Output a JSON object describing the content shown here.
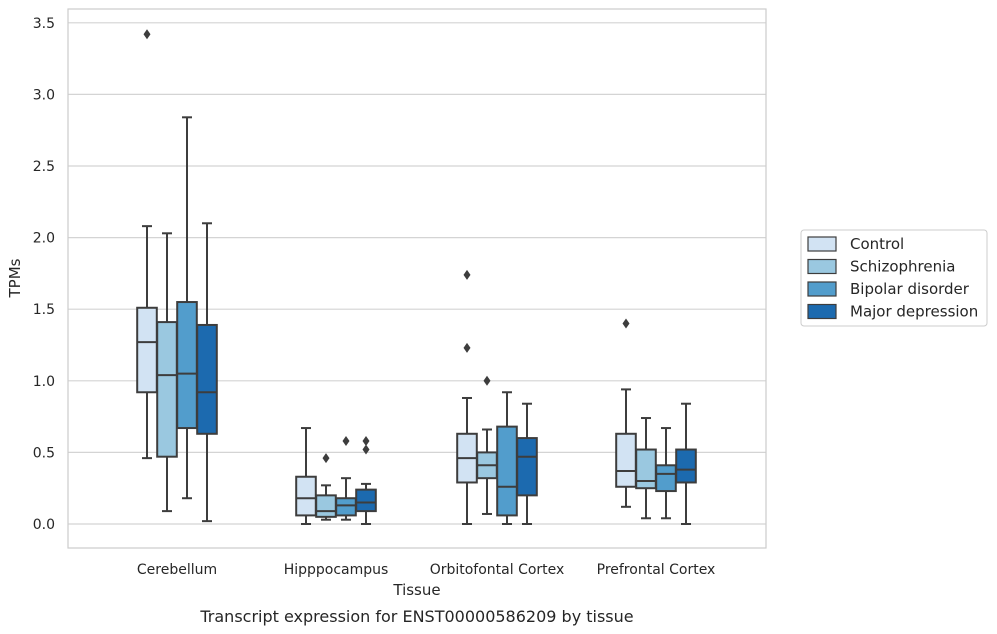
{
  "chart_data": {
    "type": "box",
    "xlabel": "Tissue",
    "ylabel": "TPMs",
    "caption": "Transcript expression for ENST00000586209 by tissue",
    "ylim": [
      -0.17,
      3.6
    ],
    "yticks": [
      "0.0",
      "0.5",
      "1.0",
      "1.5",
      "2.0",
      "2.5",
      "3.0",
      "3.5"
    ],
    "grid": "horizontal",
    "legend_position": "right",
    "categories": [
      "Cerebellum",
      "Hipppocampus",
      "Orbitofontal Cortex",
      "Prefrontal Cortex"
    ],
    "series": [
      {
        "name": "Control",
        "color": "#d2e3f3",
        "boxes": [
          {
            "whisker_low": 0.46,
            "q1": 0.92,
            "median": 1.27,
            "q3": 1.51,
            "whisker_high": 2.08,
            "outliers": [
              3.42
            ]
          },
          {
            "whisker_low": 0.0,
            "q1": 0.06,
            "median": 0.18,
            "q3": 0.33,
            "whisker_high": 0.67,
            "outliers": []
          },
          {
            "whisker_low": 0.0,
            "q1": 0.29,
            "median": 0.46,
            "q3": 0.63,
            "whisker_high": 0.88,
            "outliers": [
              1.23,
              1.74
            ]
          },
          {
            "whisker_low": 0.12,
            "q1": 0.26,
            "median": 0.37,
            "q3": 0.63,
            "whisker_high": 0.94,
            "outliers": [
              1.4
            ]
          }
        ]
      },
      {
        "name": "Schizophrenia",
        "color": "#9ac8e0",
        "boxes": [
          {
            "whisker_low": 0.09,
            "q1": 0.47,
            "median": 1.04,
            "q3": 1.41,
            "whisker_high": 2.03,
            "outliers": []
          },
          {
            "whisker_low": 0.03,
            "q1": 0.05,
            "median": 0.09,
            "q3": 0.2,
            "whisker_high": 0.27,
            "outliers": [
              0.46
            ]
          },
          {
            "whisker_low": 0.07,
            "q1": 0.32,
            "median": 0.41,
            "q3": 0.5,
            "whisker_high": 0.66,
            "outliers": [
              1.0
            ]
          },
          {
            "whisker_low": 0.04,
            "q1": 0.25,
            "median": 0.3,
            "q3": 0.52,
            "whisker_high": 0.74,
            "outliers": []
          }
        ]
      },
      {
        "name": "Bipolar disorder",
        "color": "#529dcc",
        "boxes": [
          {
            "whisker_low": 0.18,
            "q1": 0.67,
            "median": 1.05,
            "q3": 1.55,
            "whisker_high": 2.84,
            "outliers": []
          },
          {
            "whisker_low": 0.03,
            "q1": 0.06,
            "median": 0.13,
            "q3": 0.18,
            "whisker_high": 0.32,
            "outliers": [
              0.58
            ]
          },
          {
            "whisker_low": 0.0,
            "q1": 0.06,
            "median": 0.26,
            "q3": 0.68,
            "whisker_high": 0.92,
            "outliers": []
          },
          {
            "whisker_low": 0.04,
            "q1": 0.23,
            "median": 0.35,
            "q3": 0.41,
            "whisker_high": 0.67,
            "outliers": []
          }
        ]
      },
      {
        "name": "Major depression",
        "color": "#1c6aaf",
        "boxes": [
          {
            "whisker_low": 0.02,
            "q1": 0.63,
            "median": 0.92,
            "q3": 1.39,
            "whisker_high": 2.1,
            "outliers": []
          },
          {
            "whisker_low": 0.0,
            "q1": 0.09,
            "median": 0.15,
            "q3": 0.24,
            "whisker_high": 0.28,
            "outliers": [
              0.52,
              0.58
            ]
          },
          {
            "whisker_low": 0.0,
            "q1": 0.2,
            "median": 0.47,
            "q3": 0.6,
            "whisker_high": 0.84,
            "outliers": []
          },
          {
            "whisker_low": 0.0,
            "q1": 0.29,
            "median": 0.38,
            "q3": 0.52,
            "whisker_high": 0.84,
            "outliers": []
          }
        ]
      }
    ]
  }
}
